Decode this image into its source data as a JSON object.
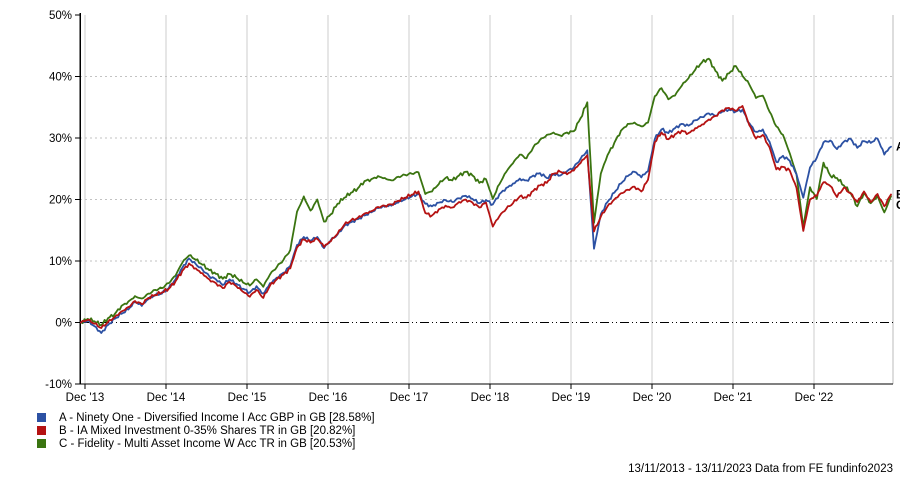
{
  "chart_data": {
    "type": "line",
    "title": "",
    "footer": "13/11/2013 - 13/11/2023 Data from FE fundinfo2023",
    "date_range": {
      "start": "13/11/2013",
      "end": "13/11/2023"
    },
    "x_axis": {
      "labels": [
        "Dec '13",
        "Dec '14",
        "Dec '15",
        "Dec '16",
        "Dec '17",
        "Dec '18",
        "Dec '19",
        "Dec '20",
        "Dec '21",
        "Dec '22"
      ],
      "months_total": 120
    },
    "y_axis": {
      "unit": "%",
      "min": -10,
      "max": 50,
      "tick_values": [
        50,
        40,
        30,
        20,
        10,
        0,
        -10
      ],
      "tick_labels": [
        "50%",
        "40%",
        "30%",
        "20%",
        "10%",
        "0%",
        "-10%"
      ]
    },
    "grid": {
      "vertical_line_color": "#cccccc",
      "horizontal_dotted_color": "#c2c2c2",
      "zero_line_color": "#000000",
      "right_border_color": "#bbbbbb"
    },
    "series": [
      {
        "letter": "A",
        "label": "A - Ninety One - Diversified Income I Acc GBP in GB [28.58%]",
        "color": "#2c51a3",
        "final_pct": 28.58,
        "monthly_values": [
          0,
          0.3,
          -0.6,
          -1.7,
          -0.4,
          0.6,
          1.4,
          2.1,
          3.3,
          2.7,
          3.8,
          4.4,
          4.7,
          5.6,
          7,
          8.9,
          10.4,
          9.5,
          8.6,
          7.5,
          7,
          6.1,
          7,
          6.3,
          5.5,
          4.9,
          5.9,
          4.7,
          6.4,
          7.3,
          8.1,
          9.2,
          12.6,
          13.9,
          13.3,
          13.9,
          12.1,
          13.4,
          14.3,
          15.7,
          16.3,
          16.8,
          17.4,
          17.9,
          18.6,
          18.8,
          19,
          19.5,
          20,
          20.5,
          20.9,
          19.3,
          18.9,
          19.5,
          19.9,
          19.6,
          20.2,
          20.6,
          20.1,
          19.4,
          19.9,
          19.2,
          20.9,
          21.9,
          22.6,
          23.4,
          23.1,
          23.9,
          24.3,
          23.5,
          24.1,
          23.9,
          24.6,
          25.2,
          26.6,
          28,
          12,
          17.6,
          19.6,
          21.1,
          22.6,
          23.8,
          24.5,
          23.6,
          24.6,
          29.8,
          31.4,
          30.8,
          31.6,
          32.3,
          32,
          32.9,
          33.4,
          34,
          33.6,
          34.3,
          34.6,
          34.3,
          34.6,
          32.4,
          31,
          31.4,
          29.4,
          26.1,
          27.1,
          26.3,
          24.1,
          20.3,
          25.2,
          26.8,
          29.3,
          29.6,
          28.2,
          29.4,
          29.9,
          28.4,
          29.5,
          29.2,
          29.9,
          27.3,
          28.58
        ]
      },
      {
        "letter": "B",
        "label": "B - IA Mixed Investment 0-35% Shares TR in GB [20.82%]",
        "color": "#b51212",
        "final_pct": 20.82,
        "monthly_values": [
          0,
          0.4,
          -0.2,
          -0.9,
          0.1,
          0.9,
          1.8,
          2.5,
          3.5,
          3,
          4,
          4.5,
          4.9,
          5.5,
          6.7,
          8.4,
          9.6,
          8.8,
          8,
          7,
          6.4,
          5.6,
          6.6,
          5.9,
          5,
          4.2,
          5.3,
          4,
          6,
          7,
          7.8,
          8.8,
          12.2,
          13.5,
          13,
          13.6,
          12.3,
          13.2,
          14.4,
          15.9,
          16.6,
          17,
          17.7,
          18.1,
          18.8,
          19,
          19.2,
          19.8,
          20.3,
          20.8,
          21.3,
          17.8,
          17.4,
          18.4,
          19,
          18.7,
          19.6,
          20,
          19.5,
          18.7,
          19.5,
          15.6,
          17.3,
          18.5,
          19.4,
          20.5,
          20.3,
          21.4,
          22.3,
          22.7,
          24.2,
          24.5,
          24.1,
          24.7,
          25.9,
          27.2,
          14.8,
          17.2,
          18.9,
          20,
          21,
          21.6,
          22.1,
          21.3,
          23.2,
          29.3,
          30.9,
          29.8,
          30.6,
          31.2,
          30.8,
          31.6,
          32.2,
          33,
          33.6,
          34.5,
          34.9,
          34.4,
          35.2,
          32.1,
          29.9,
          30.5,
          28.5,
          24.9,
          25.3,
          24.7,
          21.9,
          14.9,
          20,
          20.6,
          22.8,
          22.2,
          20.4,
          21.9,
          21,
          19.6,
          21.3,
          19.6,
          20.9,
          18.9,
          20.82
        ]
      },
      {
        "letter": "C",
        "label": "C - Fidelity - Multi Asset Income W Acc TR in GB [20.53%]",
        "color": "#3a7410",
        "final_pct": 20.53,
        "monthly_values": [
          0,
          0.6,
          0.2,
          -0.4,
          0.7,
          1.4,
          2.7,
          3.4,
          4.3,
          3.9,
          4.7,
          5.3,
          5.6,
          6.4,
          7.6,
          9.7,
          10.9,
          10.2,
          9.4,
          8.5,
          7.9,
          7.1,
          7.9,
          7.3,
          6.5,
          6,
          7,
          5.8,
          7.8,
          9,
          10.2,
          11.8,
          18,
          20.5,
          18.2,
          20,
          16.4,
          17.6,
          19.3,
          20.3,
          21.1,
          21.8,
          23,
          23.3,
          23.8,
          23.5,
          23.1,
          23.7,
          24,
          24.2,
          24.4,
          20.9,
          21.3,
          22.5,
          23.5,
          23.1,
          23.9,
          24.5,
          23.9,
          22.7,
          23.3,
          20.1,
          22.5,
          24.5,
          25.9,
          27.3,
          26.7,
          28.5,
          29.7,
          30.5,
          30.9,
          30.4,
          30.9,
          31.1,
          33.2,
          35.8,
          16.2,
          24.2,
          27.2,
          29.2,
          31.2,
          32.3,
          32.5,
          31.9,
          32.5,
          36.8,
          38.1,
          36.3,
          36.9,
          38.5,
          39.7,
          41.1,
          42.3,
          42.9,
          40.9,
          39.3,
          40.5,
          41.7,
          40.1,
          38.7,
          36.5,
          36.9,
          34.3,
          31.9,
          30.5,
          27.5,
          24.1,
          15.5,
          22,
          20.1,
          26,
          23.9,
          23.5,
          22.3,
          21.1,
          18.9,
          21.1,
          19.4,
          20.6,
          17.9,
          20.53
        ]
      }
    ]
  }
}
